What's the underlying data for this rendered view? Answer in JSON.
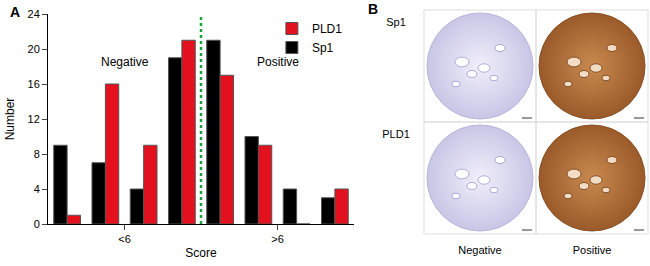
{
  "chart_data": {
    "type": "bar",
    "panel_label": "A",
    "x": [
      1,
      2,
      3,
      4,
      5,
      6,
      7,
      8
    ],
    "series": [
      {
        "name": "Sp1",
        "color": "#000000",
        "values": [
          9,
          7,
          4,
          19,
          21,
          10,
          4,
          3
        ]
      },
      {
        "name": "PLD1",
        "color": "#e3101d",
        "values": [
          1,
          16,
          9,
          21,
          17,
          9,
          0,
          4
        ]
      }
    ],
    "x_label": "Score",
    "y_label": "Number",
    "xlim": [
      0.5,
      8.5
    ],
    "xticks": [
      {
        "value": 2.5,
        "label": "<6"
      },
      {
        "value": 6.5,
        "label": ">6"
      }
    ],
    "ylim": [
      0,
      24
    ],
    "yticks": [
      0,
      4,
      8,
      12,
      16,
      20,
      24
    ],
    "grid": false,
    "legend": "top right",
    "annotations": [
      {
        "text": "Negative",
        "x": 2.5,
        "y": 18.5
      },
      {
        "text": "Positive",
        "x": 6.5,
        "y": 18.5
      }
    ],
    "vline": {
      "x": 4.5,
      "color": "#1aa33a",
      "line_style": "dot"
    }
  },
  "image_panel": {
    "label": "B",
    "rows": [
      "Sp1",
      "PLD1"
    ],
    "columns": [
      "Negative",
      "Positive"
    ]
  }
}
